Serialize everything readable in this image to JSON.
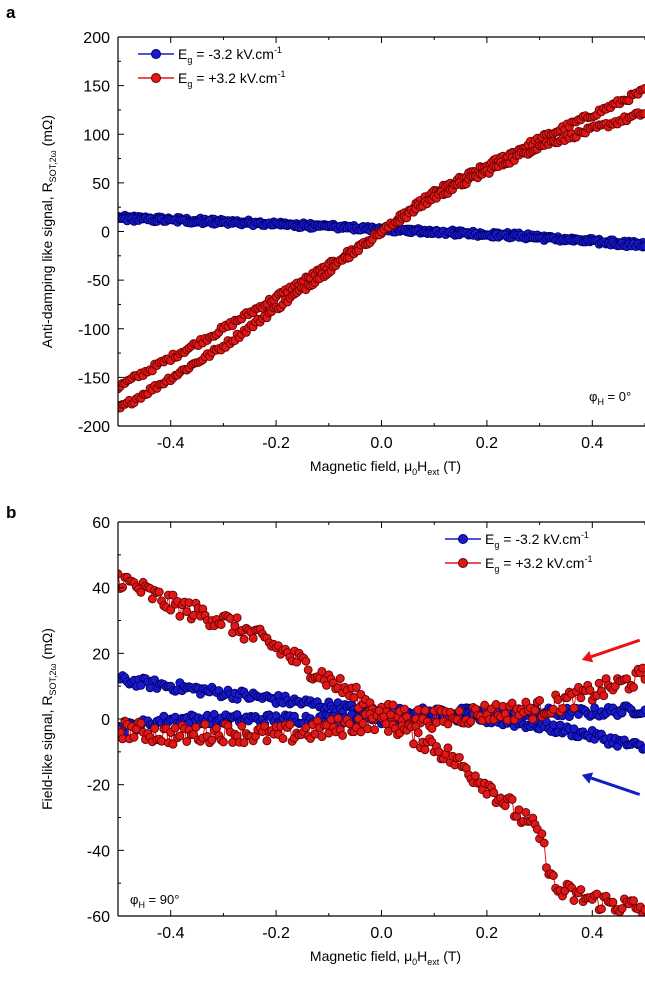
{
  "colors": {
    "blue": "#1a1acc",
    "blue_edge": "#00006a",
    "red": "#e01818",
    "red_edge": "#6a0000",
    "arrow_red": "#ee1111",
    "arrow_blue": "#1020c0"
  },
  "chart_data": [
    {
      "panel": "a",
      "type": "scatter",
      "xlabel_main": "Magnetic field, ",
      "xlabel_mu": "μ",
      "xlabel_mu_sub": "0",
      "xlabel_H": "H",
      "xlabel_H_sub": "ext",
      "xlabel_unit": " (T)",
      "ylabel_main": "Anti-damping like signal, R",
      "ylabel_sub": "SOT,2ω",
      "ylabel_unit": " (mΩ)",
      "xlim": [
        -0.5,
        0.5
      ],
      "ylim": [
        -200,
        200
      ],
      "xticks": [
        -0.4,
        -0.2,
        0.0,
        0.2,
        0.4
      ],
      "xtick_labels": [
        "-0.4",
        "-0.2",
        "0.0",
        "0.2",
        "0.4"
      ],
      "yticks": [
        200,
        150,
        100,
        50,
        0,
        -50,
        -100,
        -150,
        -200
      ],
      "ytick_labels": [
        "200",
        "150",
        "100",
        "50",
        "0",
        "-50",
        "-100",
        "-150",
        "-200"
      ],
      "legend_position": "top-left",
      "annotation": {
        "phi": "φ",
        "sub": "H",
        "rest": " = 0°"
      },
      "series": [
        {
          "name": "E_g = -3.2 kV.cm^-1",
          "legend_main": "E",
          "legend_sub": "g",
          "legend_rest": " = -3.2 kV.cm",
          "legend_sup": "-1",
          "color": "blue",
          "branches": [
            {
              "x": [
                -0.5,
                -0.25,
                0.0,
                0.25,
                0.5
              ],
              "y": [
                15,
                10,
                3,
                -3,
                -13
              ],
              "noise": 2
            },
            {
              "x": [
                -0.5,
                -0.25,
                0.0,
                0.25,
                0.5
              ],
              "y": [
                13,
                8,
                2,
                -5,
                -15
              ],
              "noise": 2
            }
          ]
        },
        {
          "name": "E_g = +3.2 kV.cm^-1",
          "legend_main": "E",
          "legend_sub": "g",
          "legend_rest": " = +3.2 kV.cm",
          "legend_sup": "-1",
          "color": "red",
          "branches": [
            {
              "x": [
                -0.5,
                -0.3,
                -0.1,
                0.0,
                0.1,
                0.3,
                0.5
              ],
              "y": [
                -160,
                -100,
                -35,
                0,
                40,
                95,
                145
              ],
              "noise": 3
            },
            {
              "x": [
                -0.5,
                -0.3,
                -0.1,
                0.0,
                0.1,
                0.3,
                0.5
              ],
              "y": [
                -183,
                -118,
                -40,
                0,
                35,
                88,
                122
              ],
              "noise": 3
            }
          ]
        }
      ]
    },
    {
      "panel": "b",
      "type": "scatter",
      "xlabel_main": "Magnetic field, ",
      "xlabel_mu": "μ",
      "xlabel_mu_sub": "0",
      "xlabel_H": "H",
      "xlabel_H_sub": "ext",
      "xlabel_unit": " (T)",
      "ylabel_main": "Field-like signal, R",
      "ylabel_sub": "SOT,2ω",
      "ylabel_unit": " (mΩ)",
      "xlim": [
        -0.5,
        0.5
      ],
      "ylim": [
        -60,
        60
      ],
      "xticks": [
        -0.4,
        -0.2,
        0.0,
        0.2,
        0.4
      ],
      "xtick_labels": [
        "-0.4",
        "-0.2",
        "0.0",
        "0.2",
        "0.4"
      ],
      "yticks": [
        60,
        40,
        20,
        0,
        -20,
        -40,
        -60
      ],
      "ytick_labels": [
        "60",
        "40",
        "20",
        "0",
        "-20",
        "-40",
        "-60"
      ],
      "legend_position": "top-right",
      "annotation": {
        "phi": "φ",
        "sub": "H",
        "rest": " = 90°"
      },
      "arrows": [
        {
          "color": "arrow_red",
          "from": [
            0.49,
            24
          ],
          "to": [
            0.38,
            18
          ]
        },
        {
          "color": "arrow_blue",
          "from": [
            0.49,
            -23
          ],
          "to": [
            0.38,
            -17
          ]
        }
      ],
      "series": [
        {
          "name": "E_g = -3.2 kV.cm^-1",
          "legend_main": "E",
          "legend_sub": "g",
          "legend_rest": " = -3.2 kV.cm",
          "legend_sup": "-1",
          "color": "blue",
          "branches": [
            {
              "x": [
                -0.5,
                -0.4,
                -0.3,
                -0.2,
                -0.1,
                0.0,
                0.1,
                0.2,
                0.3,
                0.4,
                0.5
              ],
              "y": [
                12,
                10,
                8,
                6,
                4,
                2,
                2,
                2,
                2,
                2,
                3
              ],
              "noise": 1.5
            },
            {
              "x": [
                -0.5,
                -0.4,
                -0.3,
                -0.2,
                -0.1,
                0.0,
                0.1,
                0.2,
                0.3,
                0.4,
                0.5
              ],
              "y": [
                -3,
                0,
                0,
                0,
                0,
                0,
                1,
                0,
                -2,
                -5,
                -9
              ],
              "noise": 1.5
            }
          ]
        },
        {
          "name": "E_g = +3.2 kV.cm^-1",
          "legend_main": "E",
          "legend_sub": "g",
          "legend_rest": " = +3.2 kV.cm",
          "legend_sup": "-1",
          "color": "red",
          "branches": [
            {
              "x": [
                -0.5,
                -0.4,
                -0.3,
                -0.2,
                -0.1,
                0.0,
                0.1,
                0.2,
                0.3,
                0.4,
                0.5
              ],
              "y": [
                43,
                35,
                30,
                22,
                12,
                2,
                0,
                2,
                3,
                8,
                13
              ],
              "noise": 3
            },
            {
              "x": [
                -0.5,
                -0.4,
                -0.3,
                -0.2,
                -0.1,
                0.0,
                0.1,
                0.2,
                0.3,
                0.33,
                0.4,
                0.5
              ],
              "y": [
                -3,
                -5,
                -4,
                -5,
                -3,
                0,
                -8,
                -20,
                -35,
                -52,
                -55,
                -58
              ],
              "noise": 3
            }
          ]
        }
      ]
    }
  ]
}
